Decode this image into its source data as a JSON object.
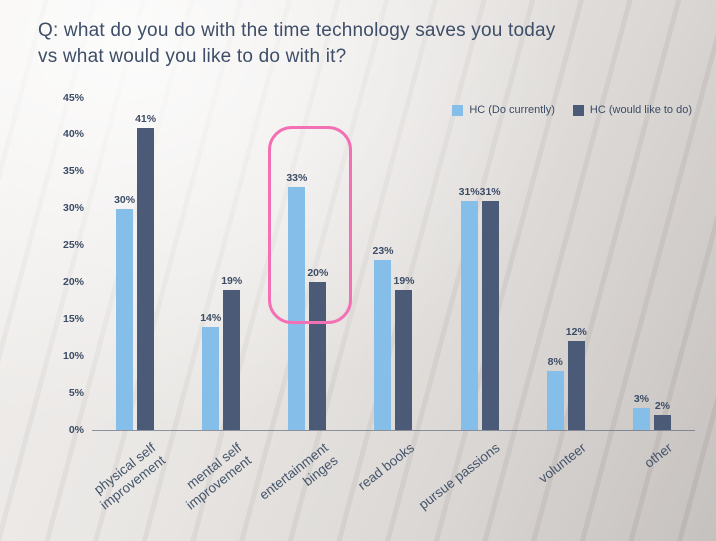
{
  "title": "Q: what do you do with the time technology saves you today\nvs what would you like to do with it?",
  "legend": [
    {
      "label": "HC (Do currently)",
      "color": "#85BEE8"
    },
    {
      "label": "HC (would like to do)",
      "color": "#4B5A76"
    }
  ],
  "chart_data": {
    "type": "bar",
    "title": "Q: what do you do with the time technology saves you today vs what would you like to do with it?",
    "categories": [
      "physical self\nimprovement",
      "mental self\nimprovement",
      "entertainment\nbinges",
      "read books",
      "pursue passions",
      "volunteer",
      "other"
    ],
    "series": [
      {
        "name": "HC (Do currently)",
        "color": "#85BEE8",
        "values": [
          30,
          14,
          33,
          23,
          31,
          8,
          3
        ]
      },
      {
        "name": "HC (would like to do)",
        "color": "#4B5A76",
        "values": [
          41,
          19,
          20,
          19,
          31,
          12,
          2
        ]
      }
    ],
    "xlabel": "",
    "ylabel": "",
    "ylim": [
      0,
      45
    ],
    "y_ticks": [
      "45%",
      "40%",
      "35%",
      "30%",
      "25%",
      "20%",
      "15%",
      "10%",
      "5%",
      "0%"
    ],
    "value_suffix": "%",
    "grid": false,
    "legend_position": "top-right",
    "annotation": {
      "type": "highlight-box",
      "category": "entertainment\nbinges",
      "color": "#F470B5"
    }
  }
}
